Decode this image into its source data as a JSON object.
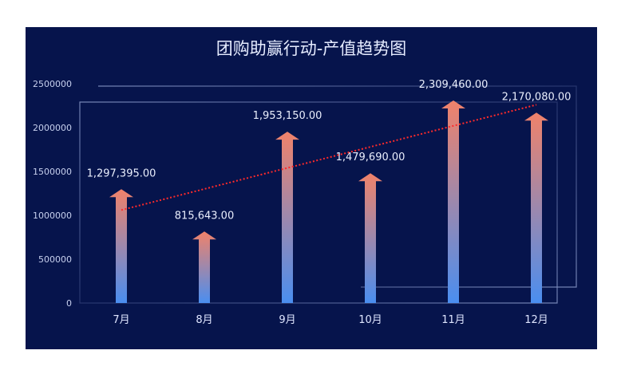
{
  "chart_data": {
    "type": "bar",
    "title": "团购助赢行动-产值趋势图",
    "categories": [
      "7月",
      "8月",
      "9月",
      "10月",
      "11月",
      "12月"
    ],
    "series": [
      {
        "values": [
          1297395,
          815643,
          1953150,
          1479690,
          2309460,
          2170080
        ]
      }
    ],
    "data_labels": [
      "1,297,395.00",
      "815,643.00",
      "1,953,150.00",
      "1,479,690.00",
      "2,309,460.00",
      "2,170,080.00"
    ],
    "y_ticks": [
      "0",
      "500000",
      "1000000",
      "1500000",
      "2000000",
      "2500000"
    ],
    "ylim": [
      0,
      2500000
    ],
    "trendline": {
      "from": 1060000,
      "to": 2260000
    },
    "grid": false,
    "colors": {
      "background": "#06144c",
      "bar_top": "#f0826a",
      "bar_bottom": "#4a8ef0",
      "trendline": "#ff2a2a",
      "title": "#e6ecff"
    }
  }
}
